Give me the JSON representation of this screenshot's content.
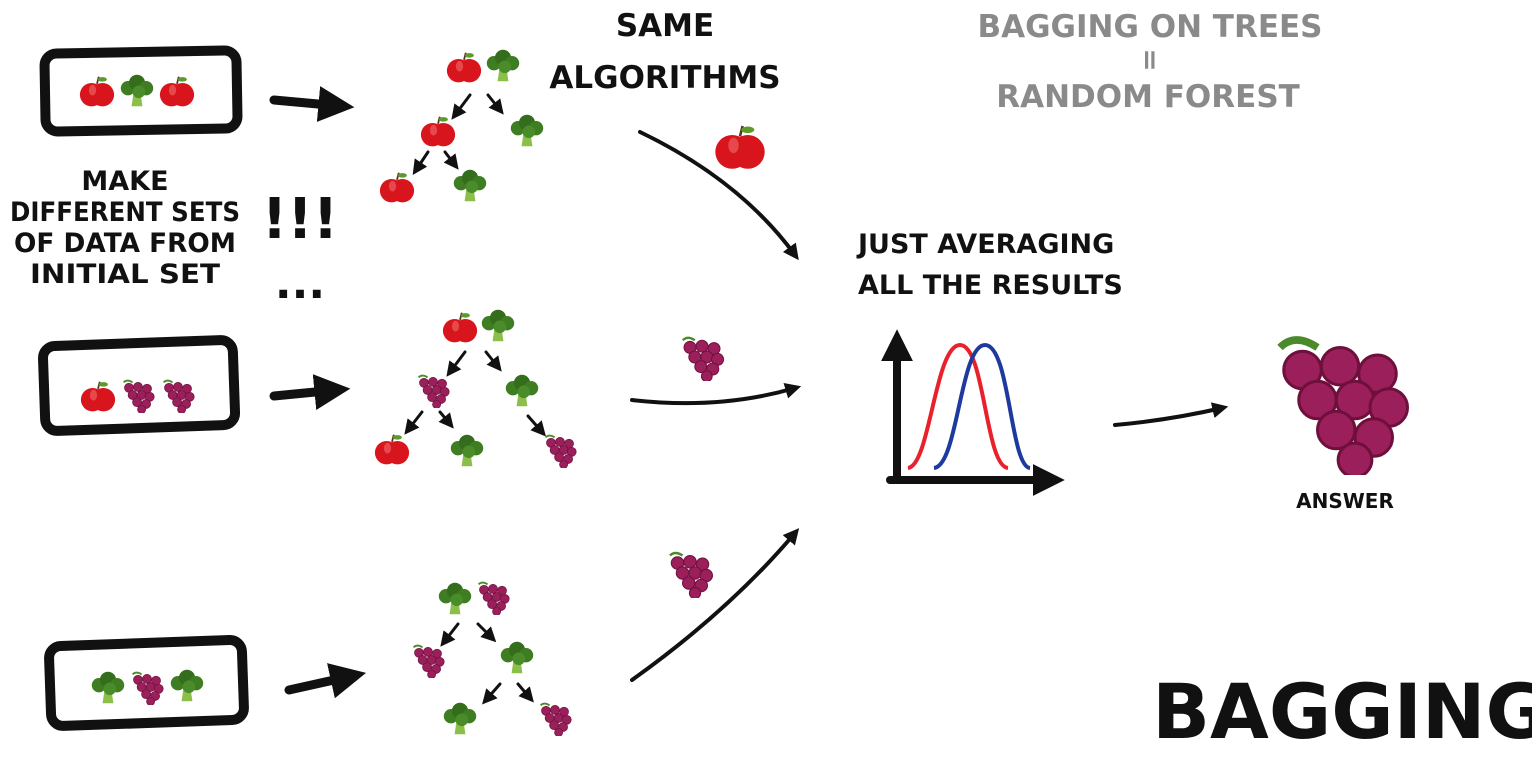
{
  "title": "BAGGING",
  "note": {
    "line1": "BAGGING ON TREES",
    "equals": "=",
    "line2": "RANDOM FOREST"
  },
  "same_algorithms": {
    "line1": "SAME",
    "line2": "ALGORITHMS"
  },
  "make_sets": {
    "lines": [
      "MAKE",
      "DIFFERENT SETS",
      "OF DATA FROM",
      "INITIAL SET"
    ],
    "exclaim": "!!!",
    "dots": "..."
  },
  "averaging": {
    "line1": "JUST AVERAGING",
    "line2": "ALL THE RESULTS"
  },
  "answer_label": "ANSWER",
  "datasets": [
    [
      "apple",
      "broccoli",
      "apple"
    ],
    [
      "apple",
      "grapes",
      "grapes"
    ],
    [
      "broccoli",
      "grapes",
      "broccoli"
    ]
  ],
  "tree_predictions": [
    "apple",
    "grapes",
    "grapes"
  ],
  "answer": "grapes",
  "colors": {
    "apple": "#d8141c",
    "broccoli": "#3f7d22",
    "grapes": "#9a1f5a",
    "curve_red": "#e8212b",
    "curve_blue": "#1f3a9e",
    "note_grey": "#8a8a8a"
  }
}
